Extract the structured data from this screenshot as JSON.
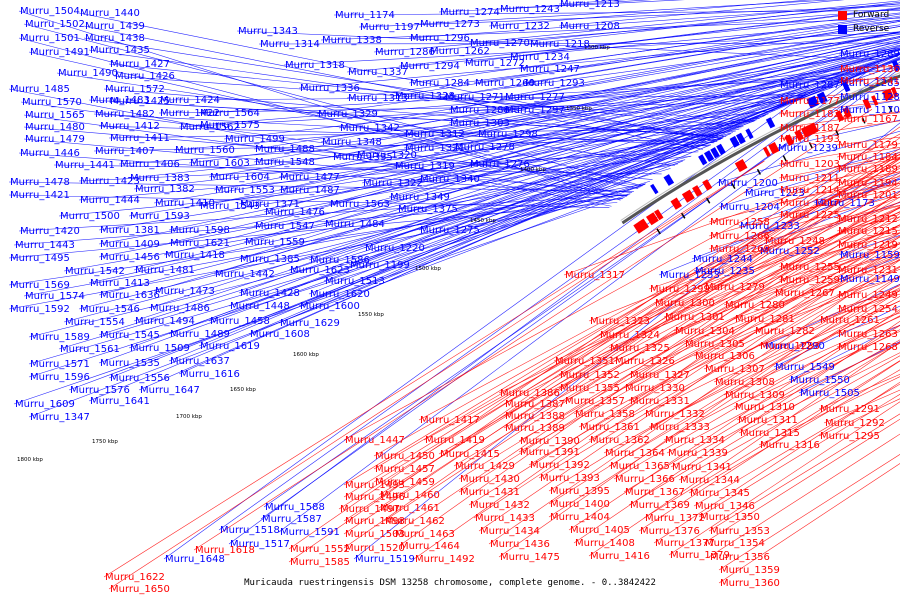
{
  "caption": "Muricauda ruestringensis DSM 13258 chromosome, complete genome. - 0..3842422",
  "legend": [
    {
      "label": "Forward",
      "color": "#ff0000"
    },
    {
      "label": "Reverse",
      "color": "#0000ff"
    }
  ],
  "colors": {
    "forward": "#ff0000",
    "reverse": "#0000ff",
    "backbone": "#555555"
  },
  "ticks": [
    "1300 kbp",
    "1350 kbp",
    "1400 kbp",
    "1450 kbp",
    "1500 kbp",
    "1550 kbp",
    "1600 kbp",
    "1650 kbp",
    "1700 kbp",
    "1750 kbp",
    "1800 kbp"
  ],
  "reverse_labels": [
    "Murru_1504",
    "Murru_1440",
    "Murru_1502",
    "Murru_1439",
    "Murru_1501",
    "Murru_1438",
    "Murru_1491",
    "Murru_1435",
    "Murru_1427",
    "Murru_1490",
    "Murru_1426",
    "Murru_1485",
    "Murru_1572",
    "Murru_1425",
    "Murru_1570",
    "Murru_1483",
    "Murru_1424",
    "Murru_1565",
    "Murru_1482",
    "Murru_1422",
    "Murru_1564",
    "Murru_1480",
    "Murru_1412",
    "Murru_1562",
    "Murru_1479",
    "Murru_1411",
    "Murru_1575",
    "Murru_1499",
    "Murru_1446",
    "Murru_1407",
    "Murru_1560",
    "Murru_1488",
    "Murru_1441",
    "Murru_1406",
    "Murru_1603",
    "Murru_1548",
    "Murru_1478",
    "Murru_1423",
    "Murru_1383",
    "Murru_1604",
    "Murru_1477",
    "Murru_1421",
    "Murru_1382",
    "Murru_1553",
    "Murru_1487",
    "Murru_1444",
    "Murru_1410",
    "Murru_1371",
    "Murru_1563",
    "Murru_1500",
    "Murru_1593",
    "Murru_1543",
    "Murru_1476",
    "Murru_1420",
    "Murru_1381",
    "Murru_1598",
    "Murru_1547",
    "Murru_1484",
    "Murru_1443",
    "Murru_1409",
    "Murru_1621",
    "Murru_1559",
    "Murru_1495",
    "Murru_1456",
    "Murru_1418",
    "Murru_1385",
    "Murru_1586",
    "Murru_1542",
    "Murru_1481",
    "Murru_1442",
    "Murru_1623",
    "Murru_1569",
    "Murru_1413",
    "Murru_1513",
    "Murru_1473",
    "Murru_1428",
    "Murru_1620",
    "Murru_1574",
    "Murru_1636",
    "Murru_1592",
    "Murru_1546",
    "Murru_1486",
    "Murru_1448",
    "Murru_1600",
    "Murru_1554",
    "Murru_1494",
    "Murru_1458",
    "Murru_1629",
    "Murru_1589",
    "Murru_1545",
    "Murru_1489",
    "Murru_1608",
    "Murru_1561",
    "Murru_1509",
    "Murru_1619",
    "Murru_1571",
    "Murru_1535",
    "Murru_1637",
    "Murru_1596",
    "Murru_1556",
    "Murru_1616",
    "Murru_1576",
    "Murru_1647",
    "Murru_1609",
    "Murru_1641",
    "Murru_1347",
    "Murru_1343",
    "Murru_1314",
    "Murru_1338",
    "Murru_1318",
    "Murru_1337",
    "Murru_1336",
    "Murru_1313",
    "Murru_1329",
    "Murru_1328",
    "Murru_1342",
    "Murru_1312",
    "Murru_1348",
    "Murru_1320",
    "Murru_1321",
    "Murru_1335",
    "Murru_1319",
    "Murru_1322",
    "Murru_1340",
    "Murru_1349",
    "Murru_1375",
    "Murru_1275",
    "Murru_1220",
    "Murru_1199",
    "Murru_1174",
    "Murru_1274",
    "Murru_1243",
    "Murru_1213",
    "Murru_1197",
    "Murru_1273",
    "Murru_1232",
    "Murru_1208",
    "Murru_1296",
    "Murru_1270",
    "Murru_1218",
    "Murru_1286",
    "Murru_1262",
    "Murru_1234",
    "Murru_1294",
    "Murru_1272",
    "Murru_1247",
    "Murru_1284",
    "Murru_1260",
    "Murru_1293",
    "Murru_1271",
    "Murru_1277",
    "Murru_1288",
    "Murru_1297",
    "Murru_1303",
    "Murru_1298",
    "Murru_1278",
    "Murru_1276",
    "Murru_1253",
    "Murru_1235",
    "Murru_1244",
    "Murru_1252",
    "Murru_1233",
    "Murru_1200",
    "Murru_1204",
    "Murru_1223",
    "Murru_1239",
    "Murru_1173",
    "Murru_1159",
    "Murru_1149",
    "Murru_1170",
    "Murru_1128",
    "Murru_1285",
    "Murru_1287",
    "Murru_1289",
    "Murru_1290",
    "Murru_1549",
    "Murru_1550",
    "Murru_1505",
    "Murru_1518",
    "Murru_1517",
    "Murru_1519",
    "Murru_1587",
    "Murru_1588",
    "Murru_1591",
    "Murru_1648"
  ],
  "forward_labels": [
    "Murru_1136",
    "Murru_1141",
    "Murru_1177",
    "Murru_1182",
    "Murru_1167",
    "Murru_1187",
    "Murru_1193",
    "Murru_1179",
    "Murru_1184",
    "Murru_1203",
    "Murru_1189",
    "Murru_1211",
    "Murru_1194",
    "Murru_1214",
    "Murru_1201",
    "Murru_1217",
    "Murru_1225",
    "Murru_1212",
    "Murru_1258",
    "Murru_1215",
    "Murru_1266",
    "Murru_1248",
    "Murru_1219",
    "Murru_1269",
    "Murru_1255",
    "Murru_1231",
    "Murru_1259",
    "Murru_1267",
    "Murru_1249",
    "Murru_1254",
    "Murru_1261",
    "Murru_1263",
    "Murru_1268",
    "Murru_1317",
    "Murru_1299",
    "Murru_1279",
    "Murru_1300",
    "Murru_1280",
    "Murru_1301",
    "Murru_1281",
    "Murru_1304",
    "Murru_1282",
    "Murru_1305",
    "Murru_1283",
    "Murru_1306",
    "Murru_1307",
    "Murru_1308",
    "Murru_1309",
    "Murru_1310",
    "Murru_1311",
    "Murru_1315",
    "Murru_1316",
    "Murru_1291",
    "Murru_1292",
    "Murru_1295",
    "Murru_1323",
    "Murru_1324",
    "Murru_1325",
    "Murru_1326",
    "Murru_1327",
    "Murru_1330",
    "Murru_1331",
    "Murru_1332",
    "Murru_1333",
    "Murru_1334",
    "Murru_1339",
    "Murru_1341",
    "Murru_1344",
    "Murru_1345",
    "Murru_1346",
    "Murru_1350",
    "Murru_1353",
    "Murru_1354",
    "Murru_1356",
    "Murru_1359",
    "Murru_1360",
    "Murru_1351",
    "Murru_1352",
    "Murru_1355",
    "Murru_1357",
    "Murru_1358",
    "Murru_1361",
    "Murru_1362",
    "Murru_1364",
    "Murru_1365",
    "Murru_1366",
    "Murru_1367",
    "Murru_1369",
    "Murru_1372",
    "Murru_1376",
    "Murru_1377",
    "Murru_1379",
    "Murru_1386",
    "Murru_1387",
    "Murru_1388",
    "Murru_1389",
    "Murru_1390",
    "Murru_1391",
    "Murru_1392",
    "Murru_1393",
    "Murru_1395",
    "Murru_1400",
    "Murru_1404",
    "Murru_1405",
    "Murru_1408",
    "Murru_1416",
    "Murru_1417",
    "Murru_1419",
    "Murru_1415",
    "Murru_1429",
    "Murru_1430",
    "Murru_1431",
    "Murru_1432",
    "Murru_1433",
    "Murru_1434",
    "Murru_1436",
    "Murru_1475",
    "Murru_1447",
    "Murru_1450",
    "Murru_1457",
    "Murru_1459",
    "Murru_1460",
    "Murru_1461",
    "Murru_1462",
    "Murru_1463",
    "Murru_1464",
    "Murru_1492",
    "Murru_1493",
    "Murru_1496",
    "Murru_1497",
    "Murru_1498",
    "Murru_1503",
    "Murru_1520",
    "Murru_1552",
    "Murru_1585",
    "Murru_1618",
    "Murru_1622",
    "Murru_1650"
  ]
}
